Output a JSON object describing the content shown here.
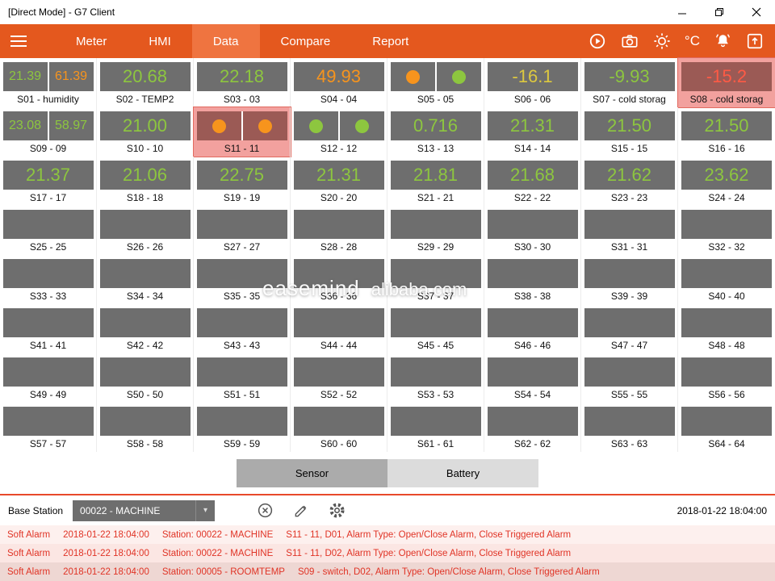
{
  "window": {
    "title": "[Direct Mode] - G7 Client"
  },
  "nav": {
    "tabs": [
      {
        "label": "Meter",
        "active": false
      },
      {
        "label": "HMI",
        "active": false
      },
      {
        "label": "Data",
        "active": true
      },
      {
        "label": "Compare",
        "active": false
      },
      {
        "label": "Report",
        "active": false
      }
    ],
    "icons": [
      "run-circle-icon",
      "camera-icon",
      "brightness-icon",
      "temperature-unit",
      "alarm-bell-icon",
      "export-image-icon"
    ],
    "unit_label": "°C"
  },
  "grid": {
    "sensors": [
      {
        "label": "S01 - humidity",
        "type": "dual",
        "values": [
          "21.39",
          "61.39"
        ],
        "colors": [
          "green",
          "orange"
        ]
      },
      {
        "label": "S02 - TEMP2",
        "type": "single",
        "values": [
          "20.68"
        ],
        "colors": [
          "green"
        ]
      },
      {
        "label": "S03 - 03",
        "type": "single",
        "values": [
          "22.18"
        ],
        "colors": [
          "green"
        ]
      },
      {
        "label": "S04 - 04",
        "type": "single",
        "values": [
          "49.93"
        ],
        "colors": [
          "orange"
        ]
      },
      {
        "label": "S05 - 05",
        "type": "circles",
        "colors": [
          "orange",
          "green"
        ]
      },
      {
        "label": "S06 - 06",
        "type": "single",
        "values": [
          "-16.1"
        ],
        "colors": [
          "yellow"
        ]
      },
      {
        "label": "S07 - cold storag",
        "type": "single",
        "values": [
          "-9.93"
        ],
        "colors": [
          "green"
        ]
      },
      {
        "label": "S08 - cold storag",
        "type": "single",
        "values": [
          "-15.2"
        ],
        "colors": [
          "red"
        ],
        "alarm": true
      },
      {
        "label": "S09 - 09",
        "type": "dual",
        "values": [
          "23.08",
          "58.97"
        ],
        "colors": [
          "green",
          "green"
        ]
      },
      {
        "label": "S10 - 10",
        "type": "single",
        "values": [
          "21.00"
        ],
        "colors": [
          "green"
        ]
      },
      {
        "label": "S11 - 11",
        "type": "circles",
        "colors": [
          "orange",
          "orange"
        ],
        "alarm": true
      },
      {
        "label": "S12 - 12",
        "type": "circles",
        "colors": [
          "green",
          "green"
        ]
      },
      {
        "label": "S13 - 13",
        "type": "single",
        "values": [
          "0.716"
        ],
        "colors": [
          "green"
        ]
      },
      {
        "label": "S14 - 14",
        "type": "single",
        "values": [
          "21.31"
        ],
        "colors": [
          "green"
        ]
      },
      {
        "label": "S15 - 15",
        "type": "single",
        "values": [
          "21.50"
        ],
        "colors": [
          "green"
        ]
      },
      {
        "label": "S16 - 16",
        "type": "single",
        "values": [
          "21.50"
        ],
        "colors": [
          "green"
        ]
      },
      {
        "label": "S17 - 17",
        "type": "single",
        "values": [
          "21.37"
        ],
        "colors": [
          "green"
        ]
      },
      {
        "label": "S18 - 18",
        "type": "single",
        "values": [
          "21.06"
        ],
        "colors": [
          "green"
        ]
      },
      {
        "label": "S19 - 19",
        "type": "single",
        "values": [
          "22.75"
        ],
        "colors": [
          "green"
        ]
      },
      {
        "label": "S20 - 20",
        "type": "single",
        "values": [
          "21.31"
        ],
        "colors": [
          "green"
        ]
      },
      {
        "label": "S21 - 21",
        "type": "single",
        "values": [
          "21.81"
        ],
        "colors": [
          "green"
        ]
      },
      {
        "label": "S22 - 22",
        "type": "single",
        "values": [
          "21.68"
        ],
        "colors": [
          "green"
        ]
      },
      {
        "label": "S23 - 23",
        "type": "single",
        "values": [
          "21.62"
        ],
        "colors": [
          "green"
        ]
      },
      {
        "label": "S24 - 24",
        "type": "single",
        "values": [
          "23.62"
        ],
        "colors": [
          "green"
        ]
      },
      {
        "label": "S25 - 25",
        "type": "empty"
      },
      {
        "label": "S26 - 26",
        "type": "empty"
      },
      {
        "label": "S27 - 27",
        "type": "empty"
      },
      {
        "label": "S28 - 28",
        "type": "empty"
      },
      {
        "label": "S29 - 29",
        "type": "empty"
      },
      {
        "label": "S30 - 30",
        "type": "empty"
      },
      {
        "label": "S31 - 31",
        "type": "empty"
      },
      {
        "label": "S32 - 32",
        "type": "empty"
      },
      {
        "label": "S33 - 33",
        "type": "empty"
      },
      {
        "label": "S34 - 34",
        "type": "empty"
      },
      {
        "label": "S35 - 35",
        "type": "empty"
      },
      {
        "label": "S36 - 36",
        "type": "empty"
      },
      {
        "label": "S37 - 37",
        "type": "empty"
      },
      {
        "label": "S38 - 38",
        "type": "empty"
      },
      {
        "label": "S39 - 39",
        "type": "empty"
      },
      {
        "label": "S40 - 40",
        "type": "empty"
      },
      {
        "label": "S41 - 41",
        "type": "empty"
      },
      {
        "label": "S42 - 42",
        "type": "empty"
      },
      {
        "label": "S43 - 43",
        "type": "empty"
      },
      {
        "label": "S44 - 44",
        "type": "empty"
      },
      {
        "label": "S45 - 45",
        "type": "empty"
      },
      {
        "label": "S46 - 46",
        "type": "empty"
      },
      {
        "label": "S47 - 47",
        "type": "empty"
      },
      {
        "label": "S48 - 48",
        "type": "empty"
      },
      {
        "label": "S49 - 49",
        "type": "empty"
      },
      {
        "label": "S50 - 50",
        "type": "empty"
      },
      {
        "label": "S51 - 51",
        "type": "empty"
      },
      {
        "label": "S52 - 52",
        "type": "empty"
      },
      {
        "label": "S53 - 53",
        "type": "empty"
      },
      {
        "label": "S54 - 54",
        "type": "empty"
      },
      {
        "label": "S55 - 55",
        "type": "empty"
      },
      {
        "label": "S56 - 56",
        "type": "empty"
      },
      {
        "label": "S57 - 57",
        "type": "empty"
      },
      {
        "label": "S58 - 58",
        "type": "empty"
      },
      {
        "label": "S59 - 59",
        "type": "empty"
      },
      {
        "label": "S60 - 60",
        "type": "empty"
      },
      {
        "label": "S61 - 61",
        "type": "empty"
      },
      {
        "label": "S62 - 62",
        "type": "empty"
      },
      {
        "label": "S63 - 63",
        "type": "empty"
      },
      {
        "label": "S64 - 64",
        "type": "empty"
      }
    ]
  },
  "watermark": {
    "brand": "easemind",
    "site": "alibaba.com"
  },
  "footer": {
    "buttons": [
      {
        "label": "Sensor",
        "active": true
      },
      {
        "label": "Battery",
        "active": false
      }
    ],
    "base_station_label": "Base Station",
    "station_select": "00022 - MACHINE",
    "timestamp": "2018-01-22 18:04:00",
    "alarms": [
      {
        "type": "Soft Alarm",
        "time": "2018-01-22 18:04:00",
        "station": "Station: 00022 - MACHINE",
        "detail": "S11 - 11, D01, Alarm Type: Open/Close Alarm, Close Triggered Alarm"
      },
      {
        "type": "Soft Alarm",
        "time": "2018-01-22 18:04:00",
        "station": "Station: 00022 - MACHINE",
        "detail": "S11 - 11, D02, Alarm Type: Open/Close Alarm, Close Triggered Alarm"
      },
      {
        "type": "Soft Alarm",
        "time": "2018-01-22 18:04:00",
        "station": "Station: 00005 - ROOMTEMP",
        "detail": "S09 - switch, D02, Alarm Type: Open/Close Alarm, Close Triggered Alarm"
      }
    ]
  },
  "colors": {
    "nav_orange": "#e4581e",
    "active_tab": "#ef7440",
    "box_gray": "#6e6e6e",
    "green": "#8dc63f",
    "orange": "#f7941d",
    "yellow": "#ddc83f",
    "red": "#ff5a45",
    "alarm_highlight": "#f2a19e",
    "alarm_box": "#9b5a55",
    "alarm_text": "#e03325",
    "separator_red": "#e8492a"
  }
}
